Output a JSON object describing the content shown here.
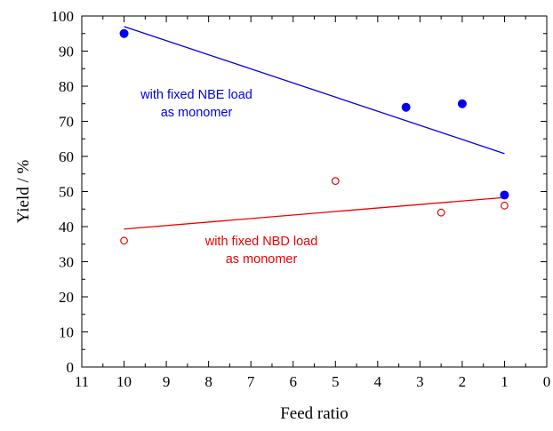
{
  "chart_data": {
    "type": "scatter",
    "xlabel": "Feed ratio",
    "ylabel": "Yield / %",
    "xlim": [
      11,
      0
    ],
    "ylim": [
      0,
      100
    ],
    "x_reversed": true,
    "x_ticks": [
      11,
      10,
      9,
      8,
      7,
      6,
      5,
      4,
      3,
      2,
      1,
      0
    ],
    "y_ticks": [
      0,
      10,
      20,
      30,
      40,
      50,
      60,
      70,
      80,
      90,
      100
    ],
    "grid": false,
    "series": [
      {
        "marker": "filled-circle",
        "color": "#0000ee",
        "points": [
          [
            10,
            95
          ],
          [
            3.33,
            74
          ],
          [
            2,
            75
          ],
          [
            1,
            49
          ]
        ],
        "fit": {
          "type": "linear",
          "x": [
            10,
            1
          ],
          "y": [
            97,
            60.8
          ]
        },
        "annotation": [
          "with fixed NBE load",
          "as monomer"
        ]
      },
      {
        "marker": "open-circle",
        "color": "#ee0000",
        "points": [
          [
            10,
            36
          ],
          [
            5,
            53
          ],
          [
            2.5,
            44
          ],
          [
            1,
            46
          ]
        ],
        "fit": {
          "type": "linear",
          "x": [
            10,
            1
          ],
          "y": [
            39.3,
            48.3
          ]
        },
        "annotation": [
          "with fixed NBD load",
          "as monomer"
        ]
      }
    ]
  }
}
